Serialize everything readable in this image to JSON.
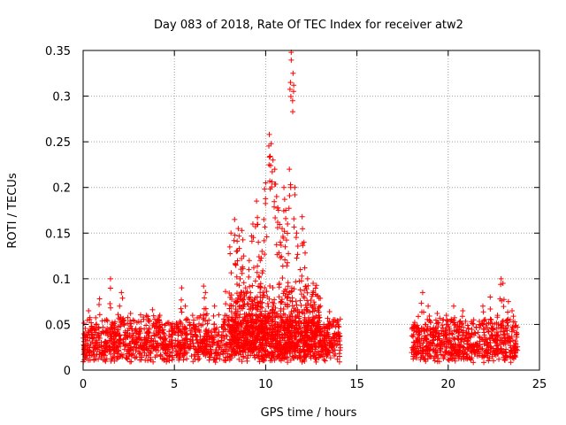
{
  "chart_data": {
    "type": "scatter",
    "title": "Day 083 of 2018, Rate Of TEC Index for receiver atw2",
    "xlabel": "GPS time / hours",
    "ylabel": "ROTI / TECUs",
    "xlim": [
      0,
      25
    ],
    "ylim": [
      0,
      0.35
    ],
    "xticks": [
      "0",
      "5",
      "10",
      "15",
      "20",
      "25"
    ],
    "yticks": [
      "0",
      "0.05",
      "0.1",
      "0.15",
      "0.2",
      "0.25",
      "0.3",
      "0.35"
    ],
    "grid": true,
    "marker": "+",
    "color": "#ff0000",
    "series": [
      {
        "name": "ROTI",
        "x": [
          0.3,
          0.9,
          1.5,
          2.0,
          2.1,
          2.6,
          3.3,
          3.8,
          4.2,
          4.8,
          5.4,
          5.6,
          6.0,
          6.6,
          6.7,
          7.2,
          7.8,
          8.1,
          8.3,
          8.4,
          8.5,
          8.6,
          8.7,
          8.8,
          8.9,
          9.1,
          9.3,
          9.5,
          9.6,
          9.7,
          9.8,
          9.9,
          10.0,
          10.2,
          10.3,
          10.4,
          10.5,
          10.6,
          10.7,
          10.8,
          10.9,
          11.0,
          11.1,
          11.2,
          11.3,
          11.4,
          11.5,
          11.6,
          11.7,
          11.9,
          12.0,
          12.1,
          12.3,
          12.6,
          13.0,
          13.5,
          13.8,
          18.2,
          18.6,
          18.9,
          19.4,
          19.9,
          20.3,
          20.8,
          21.4,
          21.9,
          22.3,
          22.7,
          22.9,
          23.0,
          23.3,
          23.5
        ],
        "y": [
          0.065,
          0.078,
          0.1,
          0.07,
          0.085,
          0.062,
          0.058,
          0.066,
          0.06,
          0.05,
          0.09,
          0.07,
          0.06,
          0.092,
          0.085,
          0.07,
          0.086,
          0.15,
          0.165,
          0.13,
          0.155,
          0.1,
          0.153,
          0.125,
          0.09,
          0.12,
          0.16,
          0.185,
          0.14,
          0.12,
          0.13,
          0.165,
          0.205,
          0.258,
          0.248,
          0.23,
          0.22,
          0.19,
          0.175,
          0.14,
          0.155,
          0.2,
          0.175,
          0.16,
          0.22,
          0.348,
          0.325,
          0.2,
          0.15,
          0.11,
          0.168,
          0.14,
          0.1,
          0.095,
          0.07,
          0.064,
          0.055,
          0.048,
          0.085,
          0.07,
          0.062,
          0.06,
          0.07,
          0.065,
          0.055,
          0.07,
          0.08,
          0.06,
          0.1,
          0.095,
          0.075,
          0.065
        ]
      }
    ],
    "density": [
      {
        "x": [
          0.0,
          14.1
        ],
        "base": [
          0.008,
          0.045
        ],
        "spread": 0.018
      },
      {
        "x": [
          8.0,
          13.0
        ],
        "base": [
          0.02,
          0.07
        ],
        "spread": 0.03
      },
      {
        "x": [
          18.0,
          23.8
        ],
        "base": [
          0.008,
          0.045
        ],
        "spread": 0.015
      }
    ]
  }
}
